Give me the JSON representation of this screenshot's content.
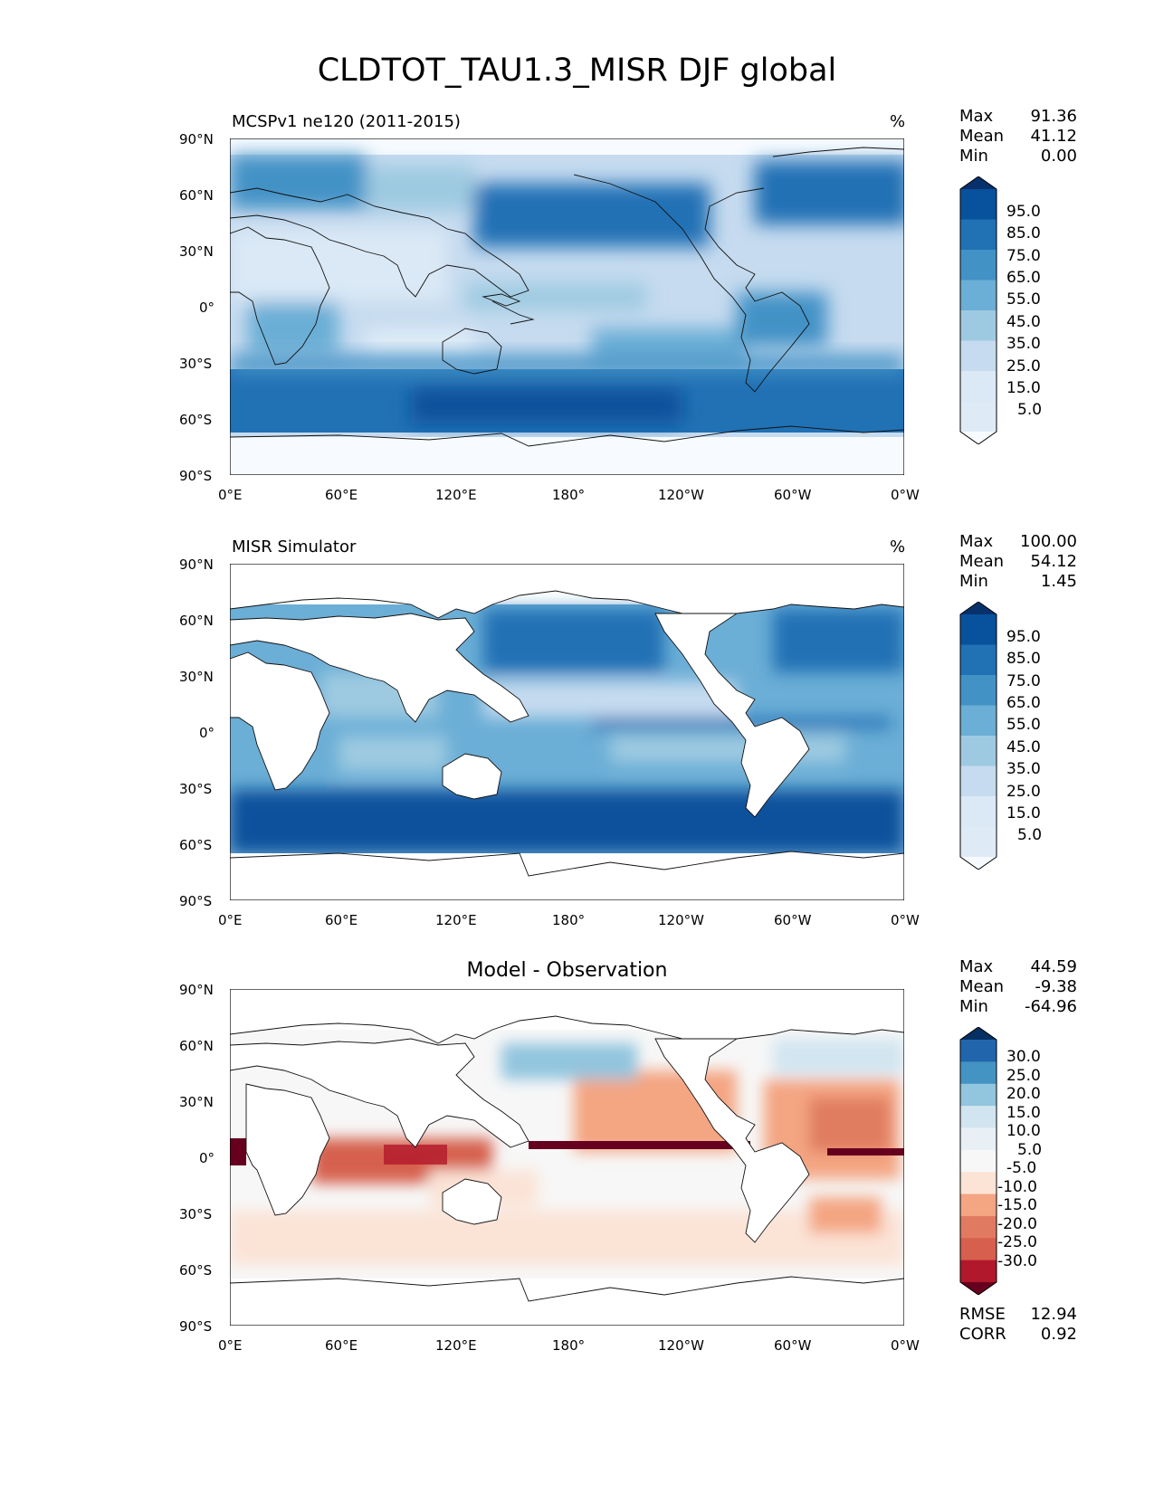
{
  "page_title": "CLDTOT_TAU1.3_MISR DJF global",
  "axes": {
    "lat_ticks": [
      "90°N",
      "60°N",
      "30°N",
      "0°",
      "30°S",
      "60°S",
      "90°S"
    ],
    "lon_ticks": [
      "0°E",
      "60°E",
      "120°E",
      "180°",
      "120°W",
      "60°W",
      "0°W"
    ]
  },
  "panels": [
    {
      "title": "MCSPv1 ne120 (2011-2015)",
      "units": "%",
      "stats": [
        {
          "label": "Max",
          "value": "91.36"
        },
        {
          "label": "Mean",
          "value": "41.12"
        },
        {
          "label": "Min",
          "value": "0.00"
        }
      ],
      "colorbar": {
        "labels": [
          "95.0",
          "85.0",
          "75.0",
          "65.0",
          "55.0",
          "45.0",
          "35.0",
          "25.0",
          "15.0",
          "5.0"
        ],
        "colors": [
          "#08306b",
          "#08519c",
          "#2171b5",
          "#4292c6",
          "#6baed6",
          "#9ecae1",
          "#c6dbef",
          "#dbe9f6",
          "#deebf7",
          "#f7fbff"
        ]
      }
    },
    {
      "title": "MISR Simulator",
      "units": "%",
      "stats": [
        {
          "label": "Max",
          "value": "100.00"
        },
        {
          "label": "Mean",
          "value": "54.12"
        },
        {
          "label": "Min",
          "value": "1.45"
        }
      ],
      "colorbar": {
        "labels": [
          "95.0",
          "85.0",
          "75.0",
          "65.0",
          "55.0",
          "45.0",
          "35.0",
          "25.0",
          "15.0",
          "5.0"
        ],
        "colors": [
          "#08306b",
          "#08519c",
          "#2171b5",
          "#4292c6",
          "#6baed6",
          "#9ecae1",
          "#c6dbef",
          "#dbe9f6",
          "#deebf7",
          "#f7fbff"
        ]
      }
    },
    {
      "title": "Model - Observation",
      "units": "",
      "stats": [
        {
          "label": "Max",
          "value": "44.59"
        },
        {
          "label": "Mean",
          "value": "-9.38"
        },
        {
          "label": "Min",
          "value": "-64.96"
        }
      ],
      "colorbar": {
        "labels": [
          "30.0",
          "25.0",
          "20.0",
          "15.0",
          "10.0",
          "5.0",
          "-5.0",
          "-10.0",
          "-15.0",
          "-20.0",
          "-25.0",
          "-30.0"
        ],
        "colors": [
          "#053061",
          "#2166ac",
          "#4393c3",
          "#92c5de",
          "#d1e5f0",
          "#e8f0f6",
          "#f7f7f7",
          "#fbe3d6",
          "#f4a582",
          "#e07b61",
          "#d6604d",
          "#b2182b",
          "#67001f"
        ]
      },
      "footer_stats": [
        {
          "label": "RMSE",
          "value": "12.94"
        },
        {
          "label": "CORR",
          "value": "0.92"
        }
      ]
    }
  ]
}
